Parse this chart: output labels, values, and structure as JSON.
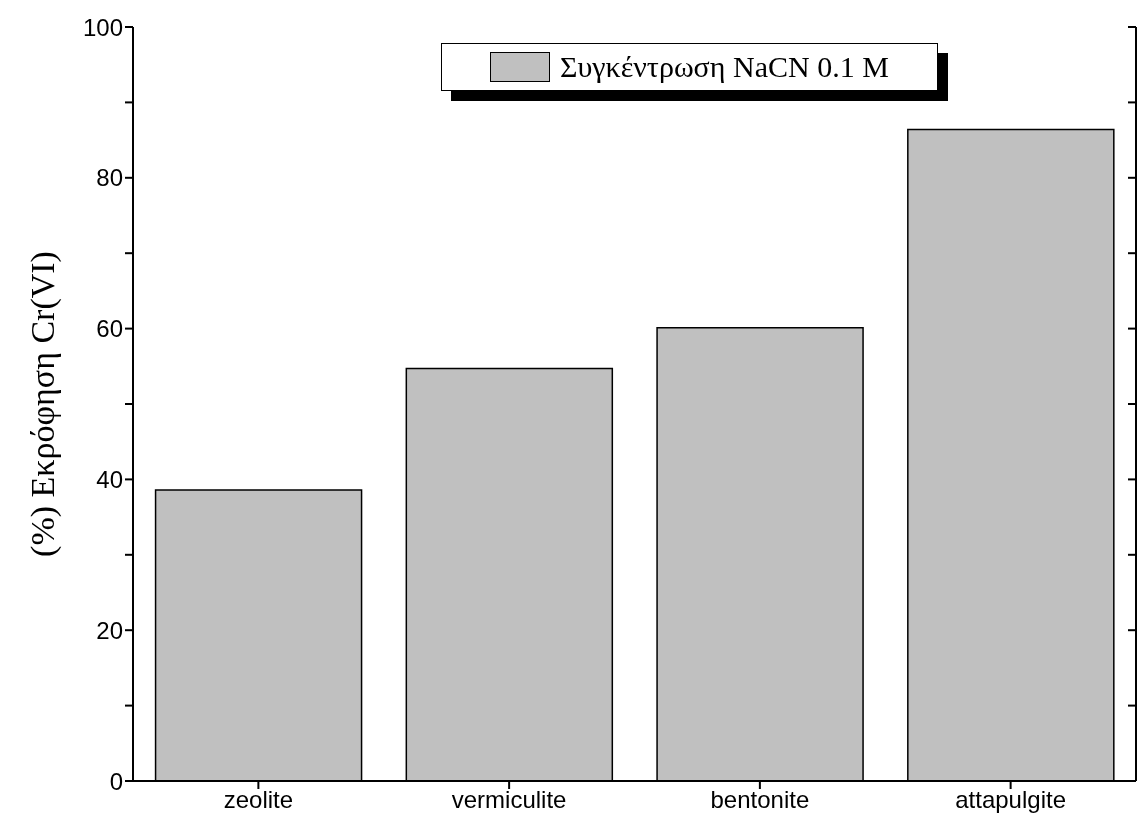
{
  "chart_data": {
    "type": "bar",
    "ylabel": "(%) Εκρόφηση Cr(VI)",
    "categories": [
      "zeolite",
      "vermiculite",
      "bentonite",
      "attapulgite"
    ],
    "series": [
      {
        "name": "Συγκέντρωση NaCN 0.1 M",
        "color": "#c0c0c0",
        "values": [
          38.6,
          54.7,
          60.1,
          86.4
        ]
      }
    ],
    "ylim": [
      0,
      100
    ],
    "yticks": [
      0,
      {
        "value": 10,
        "label": null
      },
      20,
      {
        "value": 30,
        "label": null
      },
      40,
      {
        "value": 50,
        "label": null
      },
      60,
      {
        "value": 70,
        "label": null
      },
      80,
      {
        "value": 90,
        "label": null
      },
      100
    ],
    "grid": false,
    "legend": "top"
  }
}
